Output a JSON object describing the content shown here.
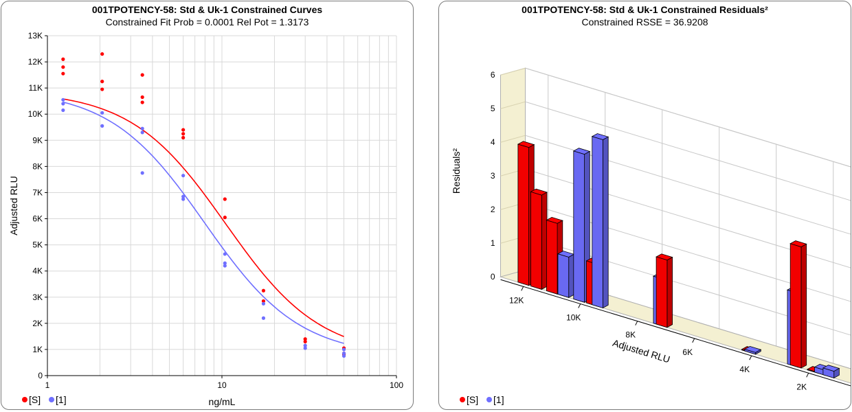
{
  "left_panel": {
    "title": "001TPOTENCY-58: Std & Uk-1  Constrained Curves",
    "subtitle": "Constrained Fit Prob = 0.0001  Rel Pot = 1.3173"
  },
  "right_panel": {
    "title": "001TPOTENCY-58: Std & Uk-1  Constrained Residuals²",
    "subtitle": "Constrained RSSE = 36.9208"
  },
  "legend": {
    "series_s": "[S]",
    "series_1": "[1]"
  },
  "colors": {
    "red": "#ff0000",
    "blue": "#6f6fff",
    "wall": "#f4f0d2"
  },
  "chart_data": [
    {
      "type": "scatter",
      "xlabel": "ng/mL",
      "ylabel": "Adjusted RLU",
      "x_scale": "log",
      "xlim": [
        1,
        100
      ],
      "ylim": [
        0,
        13000
      ],
      "x_ticks": [
        "1",
        "10",
        "100"
      ],
      "y_ticks": [
        "0",
        "1K",
        "2K",
        "3K",
        "4K",
        "5K",
        "6K",
        "7K",
        "8K",
        "9K",
        "10K",
        "11K",
        "12K",
        "13K"
      ],
      "grid": true,
      "series": [
        {
          "name": "[S]",
          "color": "#ff0000",
          "points": [
            [
              1.23,
              12100
            ],
            [
              1.23,
              11800
            ],
            [
              1.23,
              11550
            ],
            [
              2.06,
              12300
            ],
            [
              2.06,
              11250
            ],
            [
              2.06,
              10950
            ],
            [
              3.5,
              11500
            ],
            [
              3.5,
              10650
            ],
            [
              3.5,
              10450
            ],
            [
              6,
              9400
            ],
            [
              6,
              9250
            ],
            [
              6,
              9100
            ],
            [
              10.4,
              6750
            ],
            [
              10.4,
              6050
            ],
            [
              17.3,
              3250
            ],
            [
              17.3,
              2850
            ],
            [
              30,
              1400
            ],
            [
              30,
              1300
            ],
            [
              50,
              1050
            ],
            [
              50,
              850
            ],
            [
              50,
              800
            ]
          ],
          "curve": {
            "top": 10900,
            "bottom": 720,
            "ec50": 10.5,
            "slope": 1.6
          }
        },
        {
          "name": "[1]",
          "color": "#6f6fff",
          "points": [
            [
              1.23,
              10550
            ],
            [
              1.23,
              10400
            ],
            [
              1.23,
              10150
            ],
            [
              2.06,
              10050
            ],
            [
              2.06,
              9550
            ],
            [
              3.5,
              9450
            ],
            [
              3.5,
              9300
            ],
            [
              3.5,
              7750
            ],
            [
              6,
              7650
            ],
            [
              6,
              6850
            ],
            [
              6,
              6750
            ],
            [
              10.4,
              4650
            ],
            [
              10.4,
              4300
            ],
            [
              10.4,
              4200
            ],
            [
              17.3,
              2750
            ],
            [
              17.3,
              2200
            ],
            [
              30,
              1150
            ],
            [
              30,
              1050
            ],
            [
              50,
              1000
            ],
            [
              50,
              850
            ],
            [
              50,
              750
            ]
          ],
          "curve": {
            "top": 10950,
            "bottom": 720,
            "ec50": 7.97,
            "slope": 1.6
          }
        }
      ]
    },
    {
      "type": "bar",
      "xlabel": "Adjusted RLU",
      "ylabel": "Residuals²",
      "ylim": [
        0,
        6
      ],
      "y_ticks": [
        "0",
        "1",
        "2",
        "3",
        "4",
        "5",
        "6"
      ],
      "x_ticks": [
        "12K",
        "10K",
        "8K",
        "6K",
        "4K",
        "2K"
      ],
      "grid": true,
      "series": [
        {
          "name": "[S]",
          "color": "#ff0000",
          "bars": [
            [
              12000,
              4.1
            ],
            [
              11550,
              2.8
            ],
            [
              11000,
              2.1
            ],
            [
              9600,
              1.25
            ],
            [
              7150,
              2.0
            ],
            [
              4150,
              0.02
            ],
            [
              2450,
              3.6
            ],
            [
              1850,
              0.02
            ]
          ]
        },
        {
          "name": "[1]",
          "color": "#6f6fff",
          "bars": [
            [
              10600,
              1.2
            ],
            [
              10050,
              4.4
            ],
            [
              9400,
              5.0
            ],
            [
              7250,
              1.4
            ],
            [
              4050,
              0.05
            ],
            [
              2550,
              2.2
            ],
            [
              1600,
              0.15
            ],
            [
              1300,
              0.2
            ]
          ]
        }
      ]
    }
  ]
}
